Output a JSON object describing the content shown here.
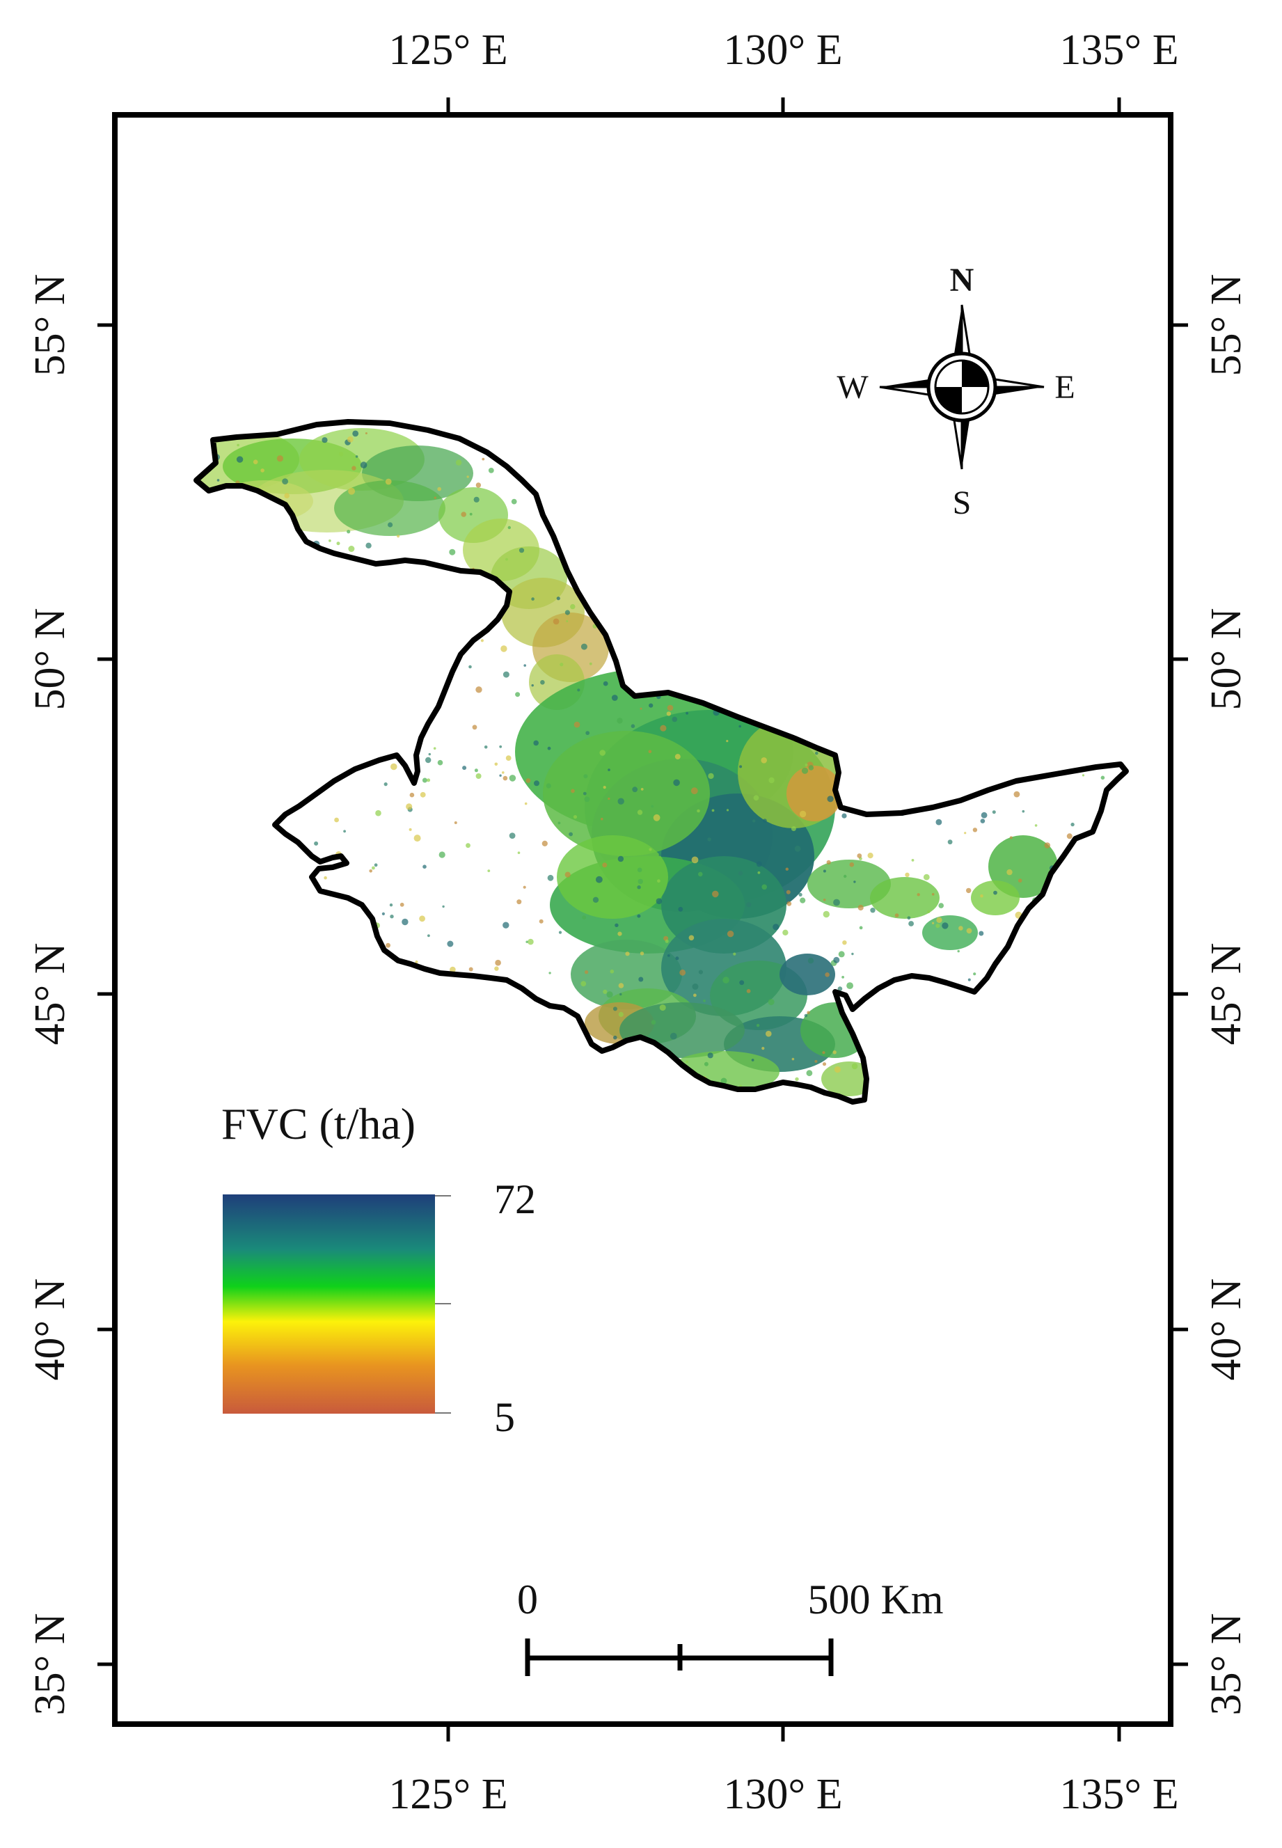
{
  "lon_labels": [
    "125° E",
    "130° E",
    "135° E"
  ],
  "lat_labels": [
    "55° N",
    "50° N",
    "45° N",
    "40° N",
    "35° N"
  ],
  "compass": {
    "n": "N",
    "s": "S",
    "e": "E",
    "w": "W"
  },
  "legend": {
    "title": "FVC (t/ha)",
    "max": "72",
    "min": "5",
    "colors": [
      "#1f3f7a",
      "#1a8a7a",
      "#0fd11a",
      "#fcf20a",
      "#e89420",
      "#c85a3c"
    ]
  },
  "scale_bar": {
    "start": "0",
    "end": "500 Km"
  },
  "colors": {
    "frame": "#000000",
    "boundary": "#000000"
  }
}
